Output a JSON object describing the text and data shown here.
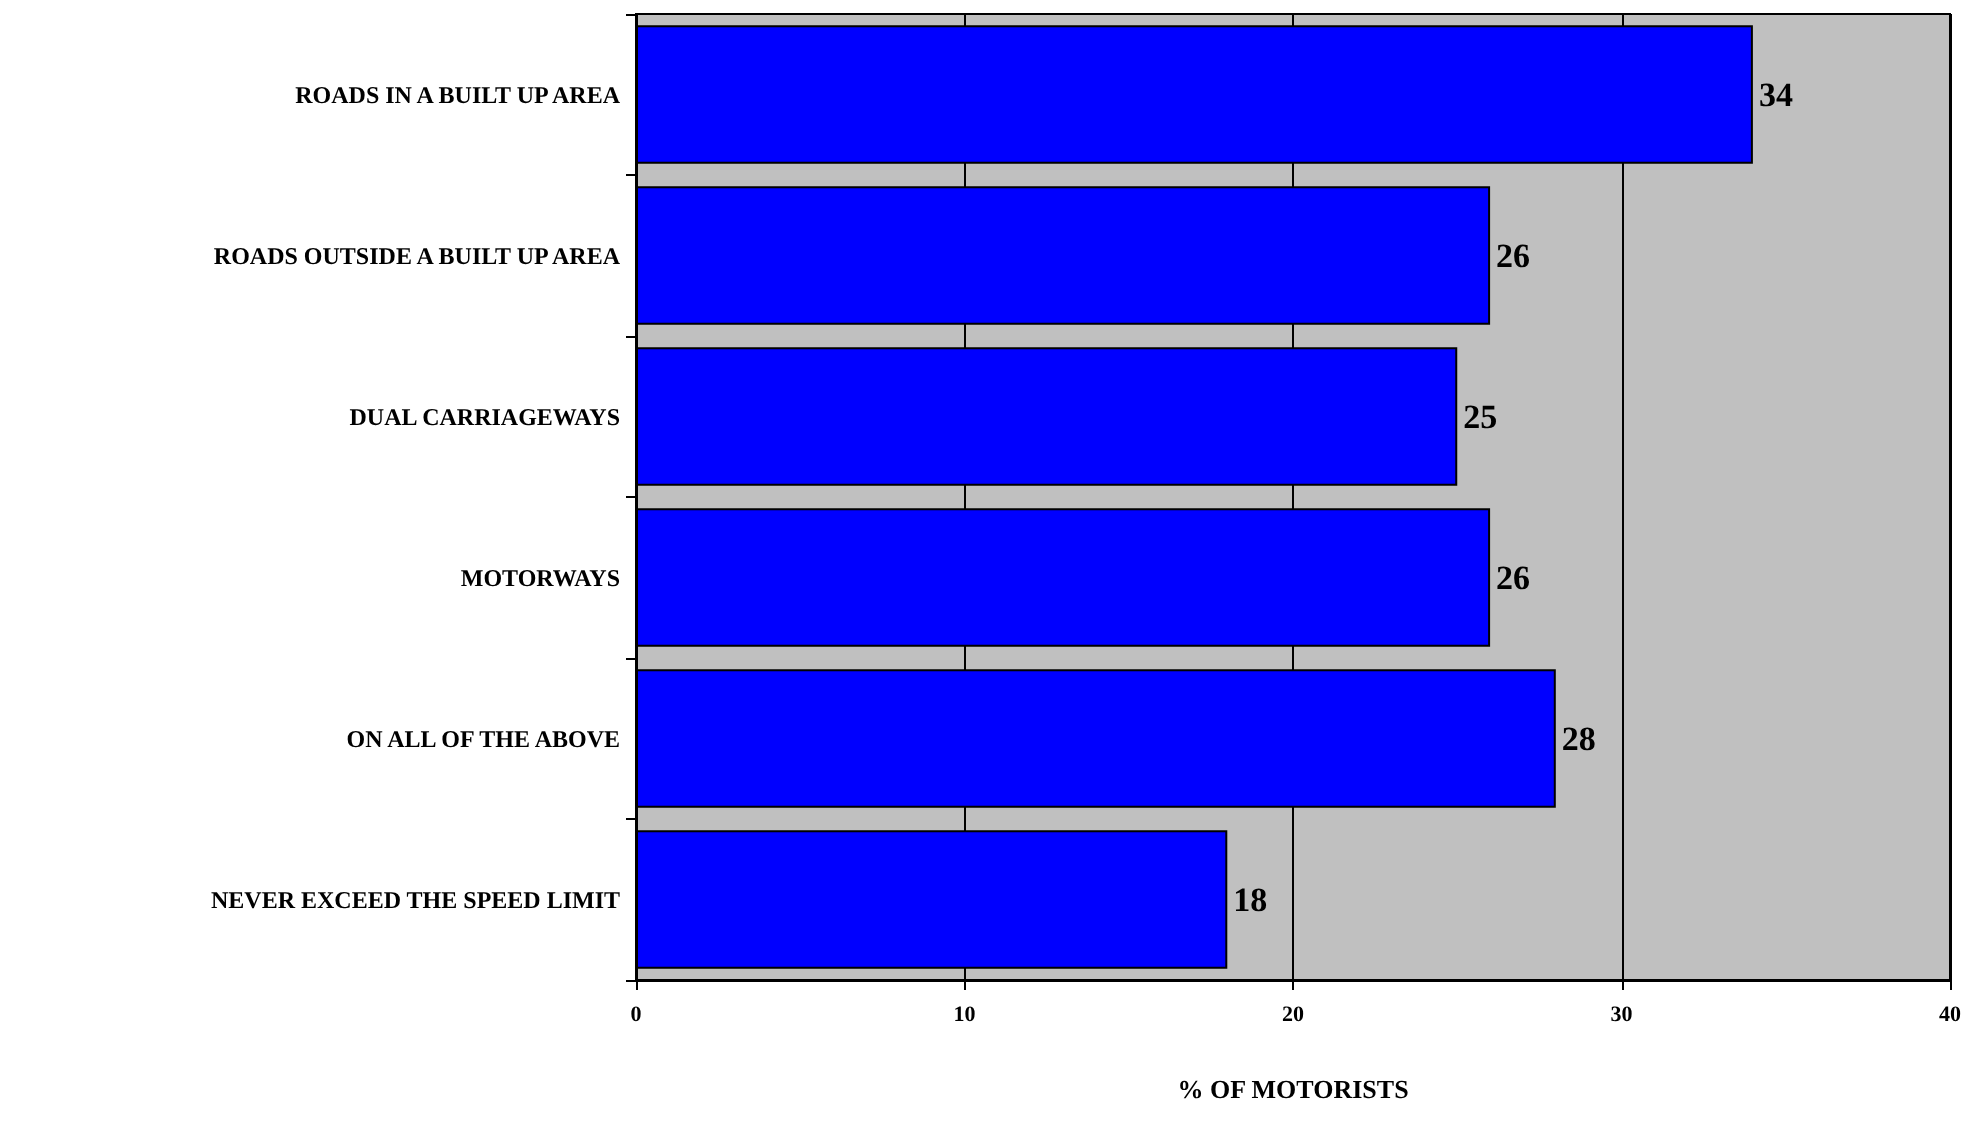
{
  "chart_data": {
    "type": "bar",
    "orientation": "horizontal",
    "xlabel": "% OF MOTORISTS",
    "categories": [
      "ROADS IN A BUILT UP AREA",
      "ROADS OUTSIDE A BUILT UP AREA",
      "DUAL CARRIAGEWAYS",
      "MOTORWAYS",
      "ON ALL OF THE ABOVE",
      "NEVER EXCEED THE SPEED LIMIT"
    ],
    "values": [
      34,
      26,
      25,
      26,
      28,
      18
    ],
    "color": "#0000ff",
    "xlim": [
      0,
      40
    ],
    "xticks": [
      0,
      10,
      20,
      30,
      40
    ],
    "grid": "x",
    "data_labels": true
  }
}
